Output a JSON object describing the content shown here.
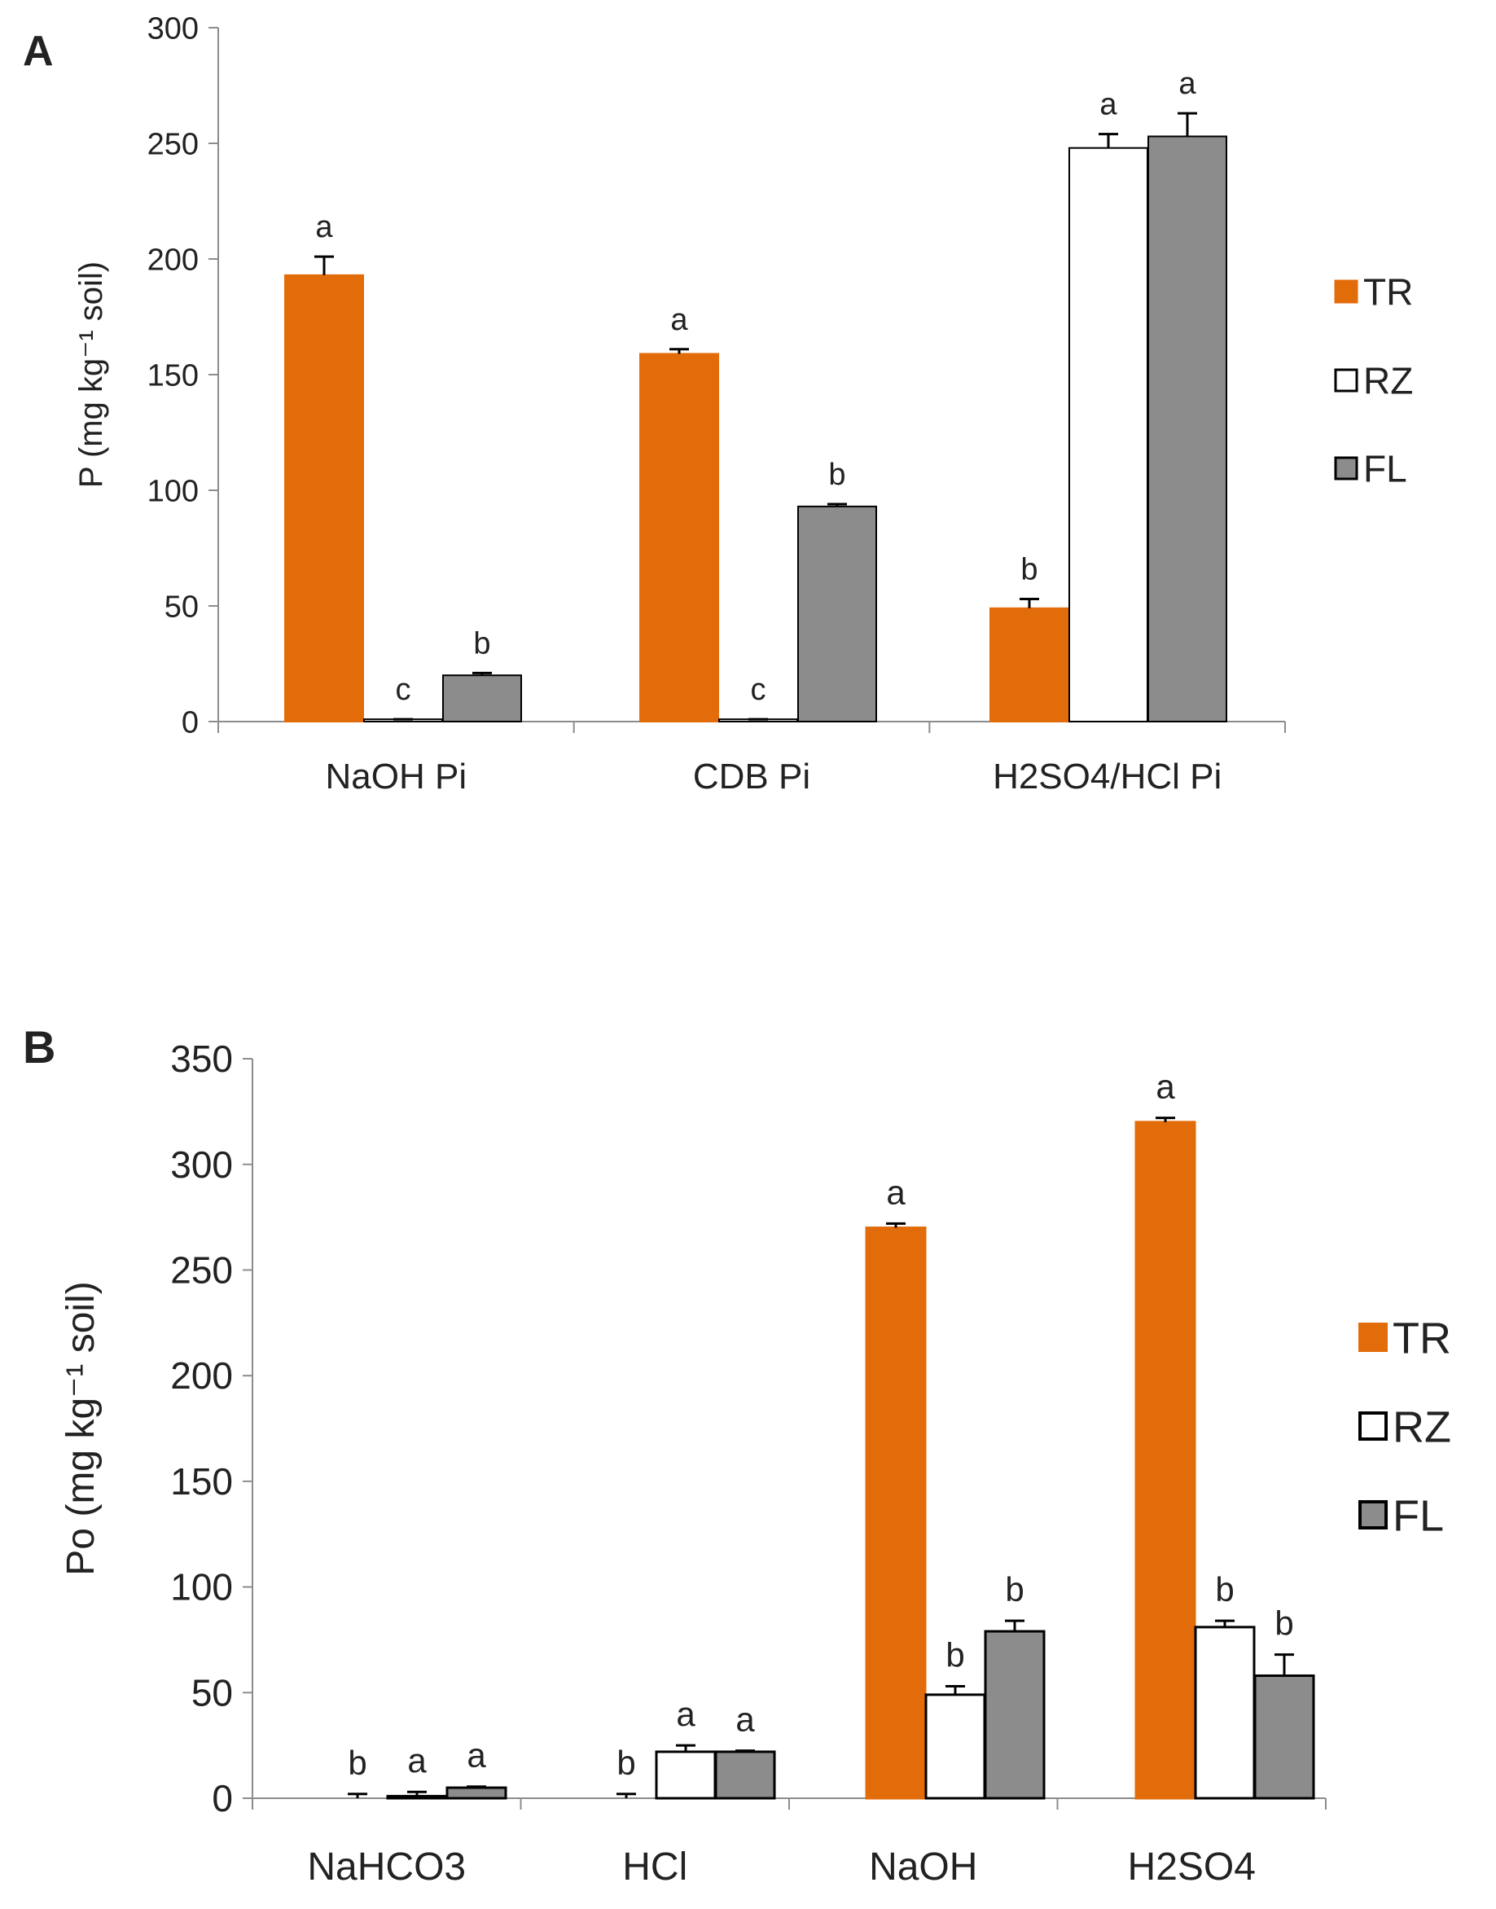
{
  "colors": {
    "TR": "#E36C0A",
    "RZ": "#FFFFFF",
    "FL": "#8C8C8C",
    "axis": "#8C8C8C",
    "text": "#222222"
  },
  "chart_data": [
    {
      "type": "bar",
      "panel_label": "A",
      "title": "",
      "xlabel": "",
      "ylabel": "P (mg kg⁻¹ soil)",
      "ylim": [
        0,
        300
      ],
      "yticks": [
        "0",
        "50",
        "100",
        "150",
        "200",
        "250",
        "300"
      ],
      "grid": false,
      "legend_position": "right",
      "categories": [
        "NaOH Pi",
        "CDB Pi",
        "H2SO4/HCl Pi"
      ],
      "series": [
        {
          "name": "TR",
          "values": [
            193,
            159,
            49
          ],
          "errors": [
            8,
            2,
            4
          ],
          "letters": [
            "a",
            "a",
            "b"
          ]
        },
        {
          "name": "RZ",
          "values": [
            1,
            1,
            248
          ],
          "errors": [
            0,
            0,
            6
          ],
          "letters": [
            "c",
            "c",
            "a"
          ]
        },
        {
          "name": "FL",
          "values": [
            20,
            93,
            253
          ],
          "errors": [
            1,
            1,
            10
          ],
          "letters": [
            "b",
            "b",
            "a"
          ]
        }
      ]
    },
    {
      "type": "bar",
      "panel_label": "B",
      "title": "",
      "xlabel": "",
      "ylabel": "Po (mg kg⁻¹ soil)",
      "ylim": [
        0,
        350
      ],
      "yticks": [
        "0",
        "50",
        "100",
        "150",
        "200",
        "250",
        "300",
        "350"
      ],
      "grid": false,
      "legend_position": "right",
      "categories": [
        "NaHCO3",
        "HCl",
        "NaOH",
        "H2SO4"
      ],
      "series": [
        {
          "name": "TR",
          "values": [
            0,
            0,
            270,
            320
          ],
          "errors": [
            2,
            2,
            2,
            2
          ],
          "letters": [
            "b",
            "b",
            "a",
            "a"
          ]
        },
        {
          "name": "RZ",
          "values": [
            1,
            22,
            49,
            81
          ],
          "errors": [
            2,
            3,
            4,
            3
          ],
          "letters": [
            "a",
            "a",
            "b",
            "b"
          ]
        },
        {
          "name": "FL",
          "values": [
            5,
            22,
            79,
            58
          ],
          "errors": [
            0.5,
            0.5,
            5,
            10
          ],
          "letters": [
            "a",
            "a",
            "b",
            "b"
          ]
        }
      ]
    }
  ]
}
